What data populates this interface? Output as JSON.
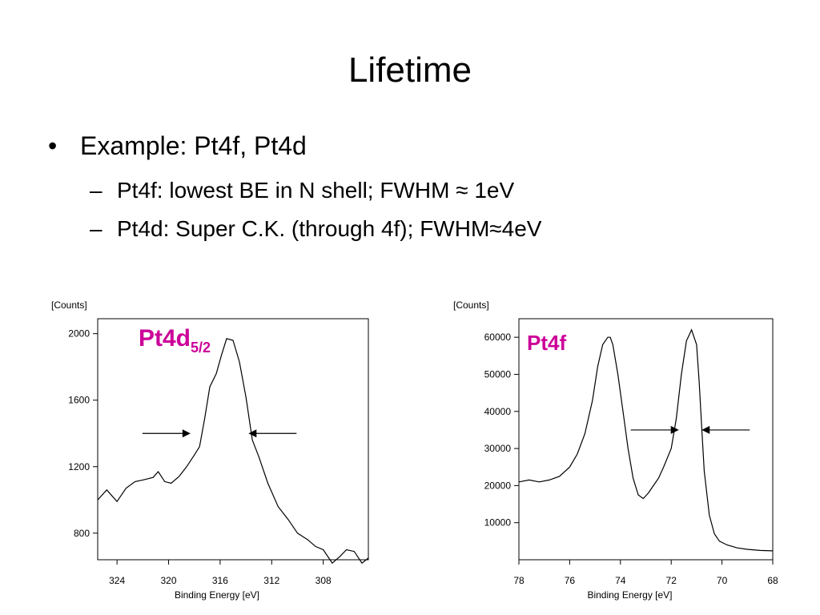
{
  "slide": {
    "title": "Lifetime",
    "bullet": "Example: Pt4f, Pt4d",
    "subbullets": [
      "Pt4f: lowest BE in N shell; FWHM ≈ 1eV",
      "Pt4d: Super C.K. (through 4f); FWHM≈4eV"
    ]
  },
  "colors": {
    "curve": "#000000",
    "annotation": "#cc0099"
  },
  "chart_data": [
    {
      "type": "line",
      "ylabel": "[Counts]",
      "xlabel": "Binding Energy [eV]",
      "annotation": {
        "main": "Pt4d",
        "subscript": "5/2"
      },
      "xlim": [
        325.5,
        304.5
      ],
      "ylim": [
        640,
        2090
      ],
      "xticks": [
        324,
        320,
        316,
        312,
        308
      ],
      "yticks": [
        800,
        1200,
        1600,
        2000
      ],
      "grid": false,
      "fwhm_arrows": {
        "left": 318.3,
        "right": 313.8,
        "y": 1400
      },
      "series": [
        {
          "x": [
            325.5,
            324.8,
            324.0,
            323.3,
            322.6,
            322.0,
            321.2,
            320.8,
            320.3,
            319.8,
            319.2,
            318.6,
            318.0,
            317.6,
            317.2,
            316.8,
            316.3,
            315.9,
            315.5,
            315.0,
            314.5,
            314.0,
            313.5,
            313.0,
            312.3,
            311.5,
            310.7,
            310.0,
            309.2,
            308.6,
            308.0,
            307.3,
            306.7,
            306.2,
            305.6,
            305.0,
            304.5
          ],
          "y": [
            1000,
            1060,
            990,
            1070,
            1110,
            1120,
            1135,
            1170,
            1110,
            1100,
            1140,
            1200,
            1270,
            1320,
            1490,
            1680,
            1760,
            1870,
            1970,
            1960,
            1830,
            1620,
            1360,
            1260,
            1100,
            960,
            880,
            800,
            760,
            720,
            700,
            620,
            660,
            700,
            690,
            620,
            650
          ]
        }
      ]
    },
    {
      "type": "line",
      "ylabel": "[Counts]",
      "xlabel": "Binding Energy [eV]",
      "annotation": {
        "main": "Pt4f"
      },
      "xlim": [
        78,
        68
      ],
      "ylim": [
        0,
        65000
      ],
      "xticks": [
        78,
        76,
        74,
        72,
        70,
        68
      ],
      "yticks": [
        10000,
        20000,
        30000,
        40000,
        50000,
        60000
      ],
      "grid": false,
      "fwhm_arrows": {
        "left": 71.7,
        "right": 70.8,
        "y": 35000
      },
      "series": [
        {
          "x": [
            78.0,
            77.6,
            77.2,
            76.8,
            76.4,
            76.0,
            75.7,
            75.4,
            75.1,
            74.9,
            74.7,
            74.5,
            74.4,
            74.3,
            74.1,
            73.9,
            73.7,
            73.5,
            73.3,
            73.1,
            72.9,
            72.7,
            72.5,
            72.3,
            72.0,
            71.8,
            71.6,
            71.4,
            71.2,
            71.0,
            70.9,
            70.8,
            70.7,
            70.5,
            70.3,
            70.1,
            69.8,
            69.4,
            69.0,
            68.5,
            68.0
          ],
          "y": [
            21000,
            21500,
            21000,
            21500,
            22500,
            25000,
            28500,
            34000,
            43000,
            52000,
            58000,
            60000,
            60000,
            58000,
            50000,
            40000,
            30000,
            22000,
            17500,
            16500,
            18000,
            20000,
            22000,
            25000,
            30000,
            38000,
            50000,
            59000,
            62000,
            58000,
            48000,
            36000,
            24000,
            12000,
            7000,
            5000,
            4000,
            3200,
            2800,
            2500,
            2400
          ]
        }
      ]
    }
  ]
}
